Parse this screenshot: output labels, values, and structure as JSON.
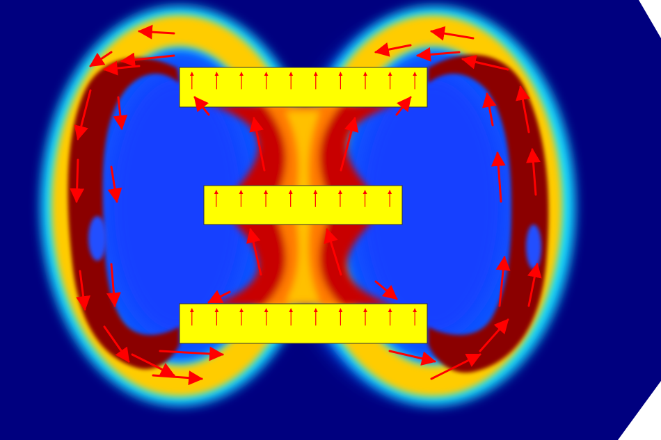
{
  "figure": {
    "kind": "magnetic-flux-density-field-plot",
    "colormap": [
      "#00007f",
      "#0000ff",
      "#00ffff",
      "#ffff00",
      "#ff0000",
      "#7f0000"
    ],
    "background_color": "#00007f",
    "arrow_color": "#ff0000",
    "magnets": [
      {
        "name": "top-magnet",
        "orientation": "up"
      },
      {
        "name": "middle-magnet",
        "orientation": "up"
      },
      {
        "name": "bottom-magnet",
        "orientation": "up"
      }
    ],
    "text": []
  }
}
